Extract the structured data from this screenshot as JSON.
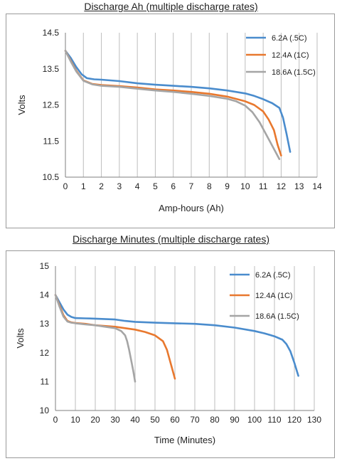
{
  "chart_data": [
    {
      "type": "line",
      "title": "Discharge Ah (multiple discharge rates)",
      "xlabel": "Amp-hours (Ah)",
      "ylabel": "Volts",
      "xlim": [
        0,
        14
      ],
      "ylim": [
        10.5,
        14.5
      ],
      "x_ticks": [
        0,
        1,
        2,
        3,
        4,
        5,
        6,
        7,
        8,
        9,
        10,
        11,
        12,
        13,
        14
      ],
      "y_ticks": [
        10.5,
        11.5,
        12.5,
        13.5,
        14.5
      ],
      "grid": "vertical",
      "legend_position": "top-right",
      "series": [
        {
          "name": "6.2A (.5C)",
          "color": "#4a8ccd",
          "x": [
            0,
            0.3,
            0.6,
            0.9,
            1.2,
            1.6,
            2,
            3,
            4,
            5,
            6,
            7,
            8,
            9,
            10,
            10.5,
            11,
            11.5,
            11.9,
            12.1,
            12.3,
            12.5
          ],
          "y": [
            14.0,
            13.8,
            13.55,
            13.35,
            13.24,
            13.21,
            13.2,
            13.16,
            13.1,
            13.06,
            13.03,
            13.0,
            12.96,
            12.9,
            12.82,
            12.75,
            12.66,
            12.55,
            12.42,
            12.15,
            11.7,
            11.2
          ]
        },
        {
          "name": "12.4A (1C)",
          "color": "#e8782e",
          "x": [
            0,
            0.3,
            0.6,
            1,
            1.5,
            2,
            3,
            4,
            5,
            6,
            7,
            8,
            9,
            10,
            10.5,
            11,
            11.3,
            11.6,
            11.8,
            12.0
          ],
          "y": [
            14.0,
            13.72,
            13.45,
            13.18,
            13.08,
            13.05,
            13.02,
            12.98,
            12.93,
            12.9,
            12.86,
            12.81,
            12.73,
            12.6,
            12.5,
            12.32,
            12.1,
            11.8,
            11.4,
            11.1
          ]
        },
        {
          "name": "18.6A (1.5C)",
          "color": "#a5a5a5",
          "x": [
            0,
            0.3,
            0.6,
            1,
            1.5,
            2,
            3,
            4,
            5,
            6,
            7,
            8,
            9,
            9.5,
            10,
            10.4,
            10.8,
            11.2,
            11.6,
            11.9
          ],
          "y": [
            14.0,
            13.7,
            13.43,
            13.17,
            13.07,
            13.03,
            13.0,
            12.95,
            12.9,
            12.86,
            12.81,
            12.75,
            12.67,
            12.6,
            12.48,
            12.3,
            12.02,
            11.65,
            11.28,
            11.0
          ]
        }
      ]
    },
    {
      "type": "line",
      "title": "Discharge Minutes (multiple discharge rates)",
      "xlabel": "Time (Minutes)",
      "ylabel": "Volts",
      "xlim": [
        0,
        130
      ],
      "ylim": [
        10,
        15
      ],
      "x_ticks": [
        0,
        10,
        20,
        30,
        40,
        50,
        60,
        70,
        80,
        90,
        100,
        110,
        120,
        130
      ],
      "y_ticks": [
        10,
        11,
        12,
        13,
        14,
        15
      ],
      "grid": "vertical",
      "legend_position": "top-right",
      "series": [
        {
          "name": "6.2A (.5C)",
          "color": "#4a8ccd",
          "x": [
            0,
            2,
            4,
            6,
            8,
            10,
            15,
            20,
            30,
            35,
            40,
            50,
            60,
            70,
            80,
            90,
            100,
            105,
            110,
            114,
            116,
            118,
            120,
            122
          ],
          "y": [
            14.0,
            13.75,
            13.5,
            13.32,
            13.24,
            13.2,
            13.19,
            13.18,
            13.15,
            13.1,
            13.07,
            13.04,
            13.02,
            13.0,
            12.95,
            12.87,
            12.75,
            12.67,
            12.57,
            12.45,
            12.3,
            12.05,
            11.65,
            11.2
          ]
        },
        {
          "name": "12.4A (1C)",
          "color": "#e8782e",
          "x": [
            0,
            2,
            4,
            6,
            8,
            10,
            15,
            20,
            30,
            40,
            45,
            50,
            54,
            56,
            58,
            60
          ],
          "y": [
            14.0,
            13.65,
            13.3,
            13.1,
            13.05,
            13.03,
            13.0,
            12.95,
            12.9,
            12.8,
            12.72,
            12.6,
            12.4,
            12.1,
            11.6,
            11.1
          ]
        },
        {
          "name": "18.6A (1.5C)",
          "color": "#a5a5a5",
          "x": [
            0,
            2,
            4,
            6,
            8,
            10,
            15,
            20,
            25,
            30,
            33,
            35,
            36,
            37,
            38,
            39,
            40
          ],
          "y": [
            14.0,
            13.6,
            13.25,
            13.08,
            13.04,
            13.02,
            12.98,
            12.95,
            12.9,
            12.85,
            12.75,
            12.6,
            12.4,
            12.1,
            11.75,
            11.4,
            11.0
          ]
        }
      ]
    }
  ]
}
